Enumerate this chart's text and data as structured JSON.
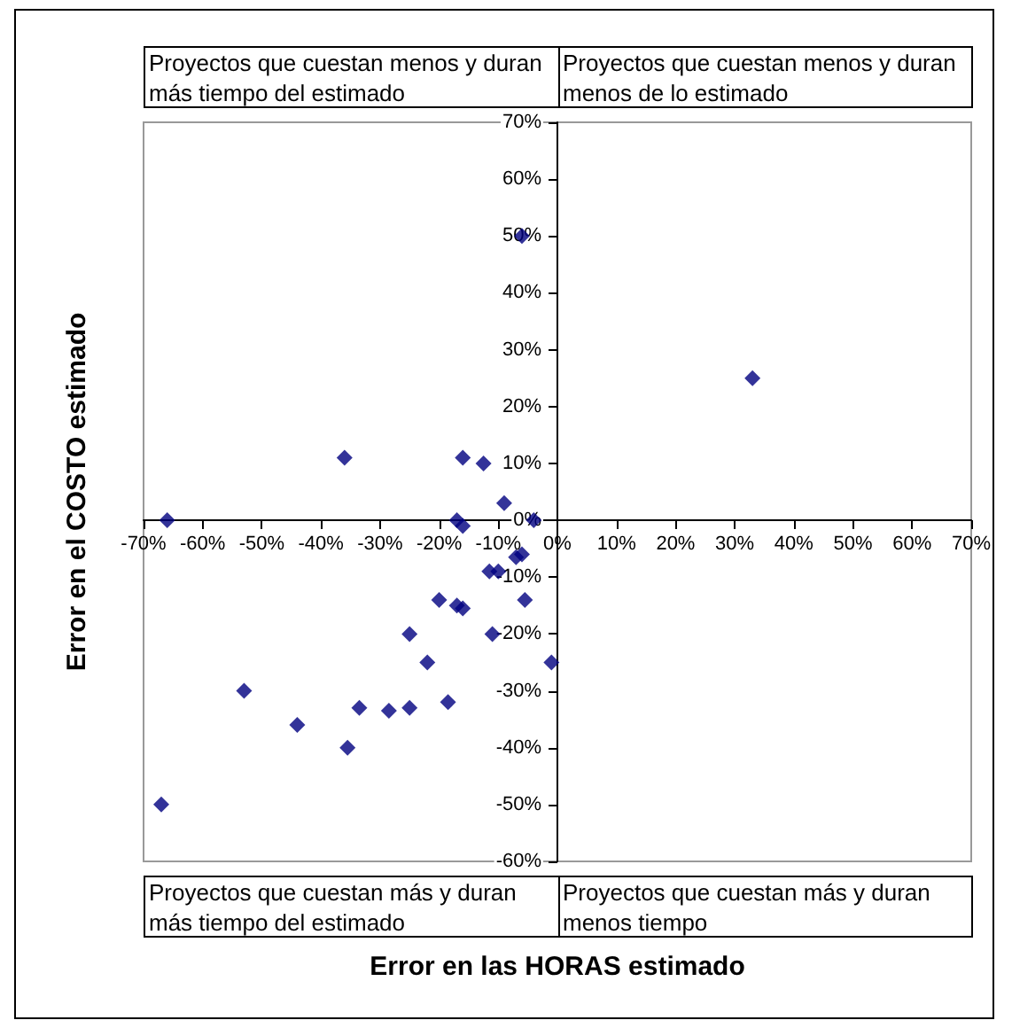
{
  "chart_data": {
    "type": "scatter",
    "xlabel": "Error en las HORAS estimado",
    "ylabel": "Error en el COSTO estimado",
    "annotations": [
      "Proyectos que cuestan menos y duran más tiempo del estimado",
      "Proyectos que cuestan menos y duran menos de lo estimado",
      "Proyectos que cuestan más y duran más tiempo del estimado",
      "Proyectos que cuestan más y duran menos tiempo"
    ],
    "series": [
      {
        "color": "#000080",
        "x": [
          -66,
          -17,
          -16,
          -4,
          -9,
          -11.5,
          -10,
          -7,
          -6,
          -20,
          -17,
          -16,
          -5.5,
          -25,
          -11,
          -22,
          -1,
          -53,
          -18.5,
          -33.5,
          -28.5,
          -25,
          -44,
          -35.5,
          -67,
          -36,
          -16,
          -12.5,
          -6,
          33
        ],
        "values": [
          0,
          0,
          -1,
          0,
          3,
          -9,
          -9,
          -6.5,
          -6,
          -14,
          -15,
          -15.5,
          -14,
          -20,
          -20,
          -25,
          -25,
          -30,
          -32,
          -33,
          -33.5,
          -33,
          -36,
          -40,
          -50,
          11,
          11,
          10,
          50,
          25
        ]
      }
    ],
    "marker": "diamond",
    "grid": false,
    "xlim": [
      -70,
      70
    ],
    "xticks": [
      {
        "value": -70,
        "label": "-70%"
      },
      {
        "value": -60,
        "label": "-60%"
      },
      {
        "value": -50,
        "label": "-50%"
      },
      {
        "value": -40,
        "label": "-40%"
      },
      {
        "value": -30,
        "label": "-30%"
      },
      {
        "value": -20,
        "label": "-20%"
      },
      {
        "value": -10,
        "label": "-10%"
      },
      {
        "value": 0,
        "label": "0%"
      },
      {
        "value": 10,
        "label": "10%"
      },
      {
        "value": 20,
        "label": "20%"
      },
      {
        "value": 30,
        "label": "30%"
      },
      {
        "value": 40,
        "label": "40%"
      },
      {
        "value": 50,
        "label": "50%"
      },
      {
        "value": 60,
        "label": "60%"
      },
      {
        "value": 70,
        "label": "70%"
      }
    ],
    "ylim": [
      -60,
      70
    ],
    "yticks": [
      {
        "value": -60,
        "label": "-60%"
      },
      {
        "value": -50,
        "label": "-50%"
      },
      {
        "value": -40,
        "label": "-40%"
      },
      {
        "value": -30,
        "label": "-30%"
      },
      {
        "value": -20,
        "label": "-20%"
      },
      {
        "value": -10,
        "label": "-10%"
      },
      {
        "value": 0,
        "label": "0%"
      },
      {
        "value": 10,
        "label": "10%"
      },
      {
        "value": 20,
        "label": "20%"
      },
      {
        "value": 30,
        "label": "30%"
      },
      {
        "value": 40,
        "label": "40%"
      },
      {
        "value": 50,
        "label": "50%"
      },
      {
        "value": 60,
        "label": "60%"
      },
      {
        "value": 70,
        "label": "70%"
      }
    ]
  }
}
